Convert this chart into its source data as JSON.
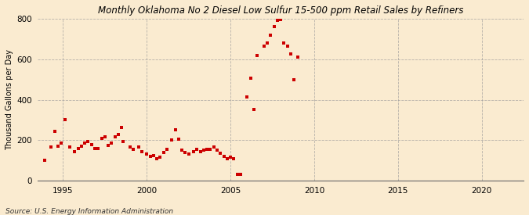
{
  "title": "Monthly Oklahoma No 2 Diesel Low Sulfur 15-500 ppm Retail Sales by Refiners",
  "ylabel": "Thousand Gallons per Day",
  "source": "Source: U.S. Energy Information Administration",
  "background_color": "#faebd0",
  "dot_color": "#cc0000",
  "ylim": [
    0,
    800
  ],
  "xlim": [
    1993.5,
    2022.5
  ],
  "xticks": [
    1995,
    2000,
    2005,
    2010,
    2015,
    2020
  ],
  "yticks": [
    0,
    200,
    400,
    600,
    800
  ],
  "data_x": [
    1993.9,
    1994.3,
    1994.5,
    1994.7,
    1994.9,
    1995.1,
    1995.4,
    1995.7,
    1995.9,
    1996.1,
    1996.3,
    1996.5,
    1996.7,
    1996.9,
    1997.1,
    1997.3,
    1997.5,
    1997.7,
    1997.9,
    1998.1,
    1998.3,
    1998.5,
    1998.6,
    1999.0,
    1999.2,
    1999.5,
    1999.7,
    2000.0,
    2000.2,
    2000.4,
    2000.6,
    2000.8,
    2001.0,
    2001.2,
    2001.5,
    2001.7,
    2001.9,
    2002.1,
    2002.3,
    2002.5,
    2002.8,
    2003.0,
    2003.2,
    2003.4,
    2003.6,
    2003.8,
    2004.0,
    2004.2,
    2004.4,
    2004.6,
    2004.8,
    2005.0,
    2005.2,
    2005.4,
    2005.6,
    2006.0,
    2006.2,
    2006.4,
    2006.6,
    2007.0,
    2007.2,
    2007.4,
    2007.6,
    2007.8,
    2008.0,
    2008.2,
    2008.4,
    2008.6,
    2008.8,
    2009.0
  ],
  "data_y": [
    100,
    165,
    245,
    170,
    185,
    300,
    165,
    145,
    160,
    170,
    185,
    195,
    180,
    160,
    160,
    210,
    215,
    175,
    185,
    215,
    230,
    265,
    195,
    165,
    155,
    165,
    145,
    130,
    120,
    125,
    110,
    115,
    140,
    155,
    200,
    250,
    205,
    150,
    140,
    130,
    145,
    155,
    145,
    150,
    155,
    155,
    165,
    150,
    135,
    120,
    110,
    115,
    110,
    30,
    30,
    415,
    505,
    350,
    620,
    665,
    680,
    720,
    760,
    790,
    795,
    680,
    665,
    625,
    500,
    610
  ]
}
